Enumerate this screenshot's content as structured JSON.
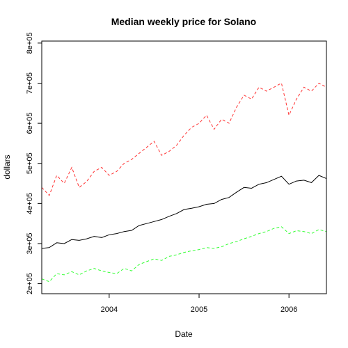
{
  "chart_data": {
    "type": "line",
    "title": "Median weekly price for Solano",
    "xlabel": "Date",
    "ylabel": "dollars",
    "x_start": "2003-04",
    "x_end": "2006-06",
    "x_ticks": [
      {
        "value": "2004-01",
        "label": "2004"
      },
      {
        "value": "2005-01",
        "label": "2005"
      },
      {
        "value": "2006-01",
        "label": "2006"
      }
    ],
    "ylim": [
      175000,
      805000
    ],
    "y_ticks": [
      {
        "value": 200000,
        "label": "2e+05"
      },
      {
        "value": 300000,
        "label": "3e+05"
      },
      {
        "value": 400000,
        "label": "4e+05"
      },
      {
        "value": 500000,
        "label": "5e+05"
      },
      {
        "value": 600000,
        "label": "6e+05"
      },
      {
        "value": 700000,
        "label": "7e+05"
      },
      {
        "value": 800000,
        "label": "8e+05"
      }
    ],
    "grid": false,
    "legend": "none",
    "series": [
      {
        "color": "#ff3333",
        "dash": "dashed",
        "x": [
          "2003-04",
          "2003-05",
          "2003-06",
          "2003-07",
          "2003-08",
          "2003-09",
          "2003-10",
          "2003-11",
          "2003-12",
          "2004-01",
          "2004-02",
          "2004-03",
          "2004-04",
          "2004-05",
          "2004-06",
          "2004-07",
          "2004-08",
          "2004-09",
          "2004-10",
          "2004-11",
          "2004-12",
          "2005-01",
          "2005-02",
          "2005-03",
          "2005-04",
          "2005-05",
          "2005-06",
          "2005-07",
          "2005-08",
          "2005-09",
          "2005-10",
          "2005-11",
          "2005-12",
          "2006-01",
          "2006-02",
          "2006-03",
          "2006-04",
          "2006-05",
          "2006-06"
        ],
        "y": [
          440000,
          420000,
          470000,
          450000,
          490000,
          440000,
          455000,
          480000,
          490000,
          470000,
          480000,
          500000,
          510000,
          525000,
          540000,
          555000,
          520000,
          530000,
          545000,
          570000,
          590000,
          600000,
          620000,
          585000,
          610000,
          600000,
          640000,
          670000,
          660000,
          690000,
          680000,
          690000,
          700000,
          620000,
          660000,
          690000,
          680000,
          700000,
          690000
        ]
      },
      {
        "color": "#000000",
        "dash": "solid",
        "x": [
          "2003-04",
          "2003-05",
          "2003-06",
          "2003-07",
          "2003-08",
          "2003-09",
          "2003-10",
          "2003-11",
          "2003-12",
          "2004-01",
          "2004-02",
          "2004-03",
          "2004-04",
          "2004-05",
          "2004-06",
          "2004-07",
          "2004-08",
          "2004-09",
          "2004-10",
          "2004-11",
          "2004-12",
          "2005-01",
          "2005-02",
          "2005-03",
          "2005-04",
          "2005-05",
          "2005-06",
          "2005-07",
          "2005-08",
          "2005-09",
          "2005-10",
          "2005-11",
          "2005-12",
          "2006-01",
          "2006-02",
          "2006-03",
          "2006-04",
          "2006-05",
          "2006-06"
        ],
        "y": [
          288000,
          290000,
          302000,
          300000,
          310000,
          308000,
          312000,
          318000,
          315000,
          322000,
          325000,
          330000,
          333000,
          345000,
          350000,
          355000,
          360000,
          368000,
          375000,
          385000,
          388000,
          392000,
          398000,
          400000,
          410000,
          415000,
          428000,
          440000,
          438000,
          448000,
          452000,
          460000,
          468000,
          448000,
          456000,
          458000,
          452000,
          470000,
          462000
        ]
      },
      {
        "color": "#33ff33",
        "dash": "dashed",
        "x": [
          "2003-04",
          "2003-05",
          "2003-06",
          "2003-07",
          "2003-08",
          "2003-09",
          "2003-10",
          "2003-11",
          "2003-12",
          "2004-01",
          "2004-02",
          "2004-03",
          "2004-04",
          "2004-05",
          "2004-06",
          "2004-07",
          "2004-08",
          "2004-09",
          "2004-10",
          "2004-11",
          "2004-12",
          "2005-01",
          "2005-02",
          "2005-03",
          "2005-04",
          "2005-05",
          "2005-06",
          "2005-07",
          "2005-08",
          "2005-09",
          "2005-10",
          "2005-11",
          "2005-12",
          "2006-01",
          "2006-02",
          "2006-03",
          "2006-04",
          "2006-05",
          "2006-06"
        ],
        "y": [
          212000,
          205000,
          225000,
          222000,
          230000,
          222000,
          232000,
          238000,
          232000,
          228000,
          225000,
          238000,
          232000,
          248000,
          255000,
          262000,
          258000,
          268000,
          272000,
          278000,
          282000,
          285000,
          290000,
          288000,
          292000,
          300000,
          305000,
          312000,
          318000,
          325000,
          330000,
          338000,
          342000,
          325000,
          332000,
          330000,
          325000,
          335000,
          330000
        ]
      }
    ]
  }
}
